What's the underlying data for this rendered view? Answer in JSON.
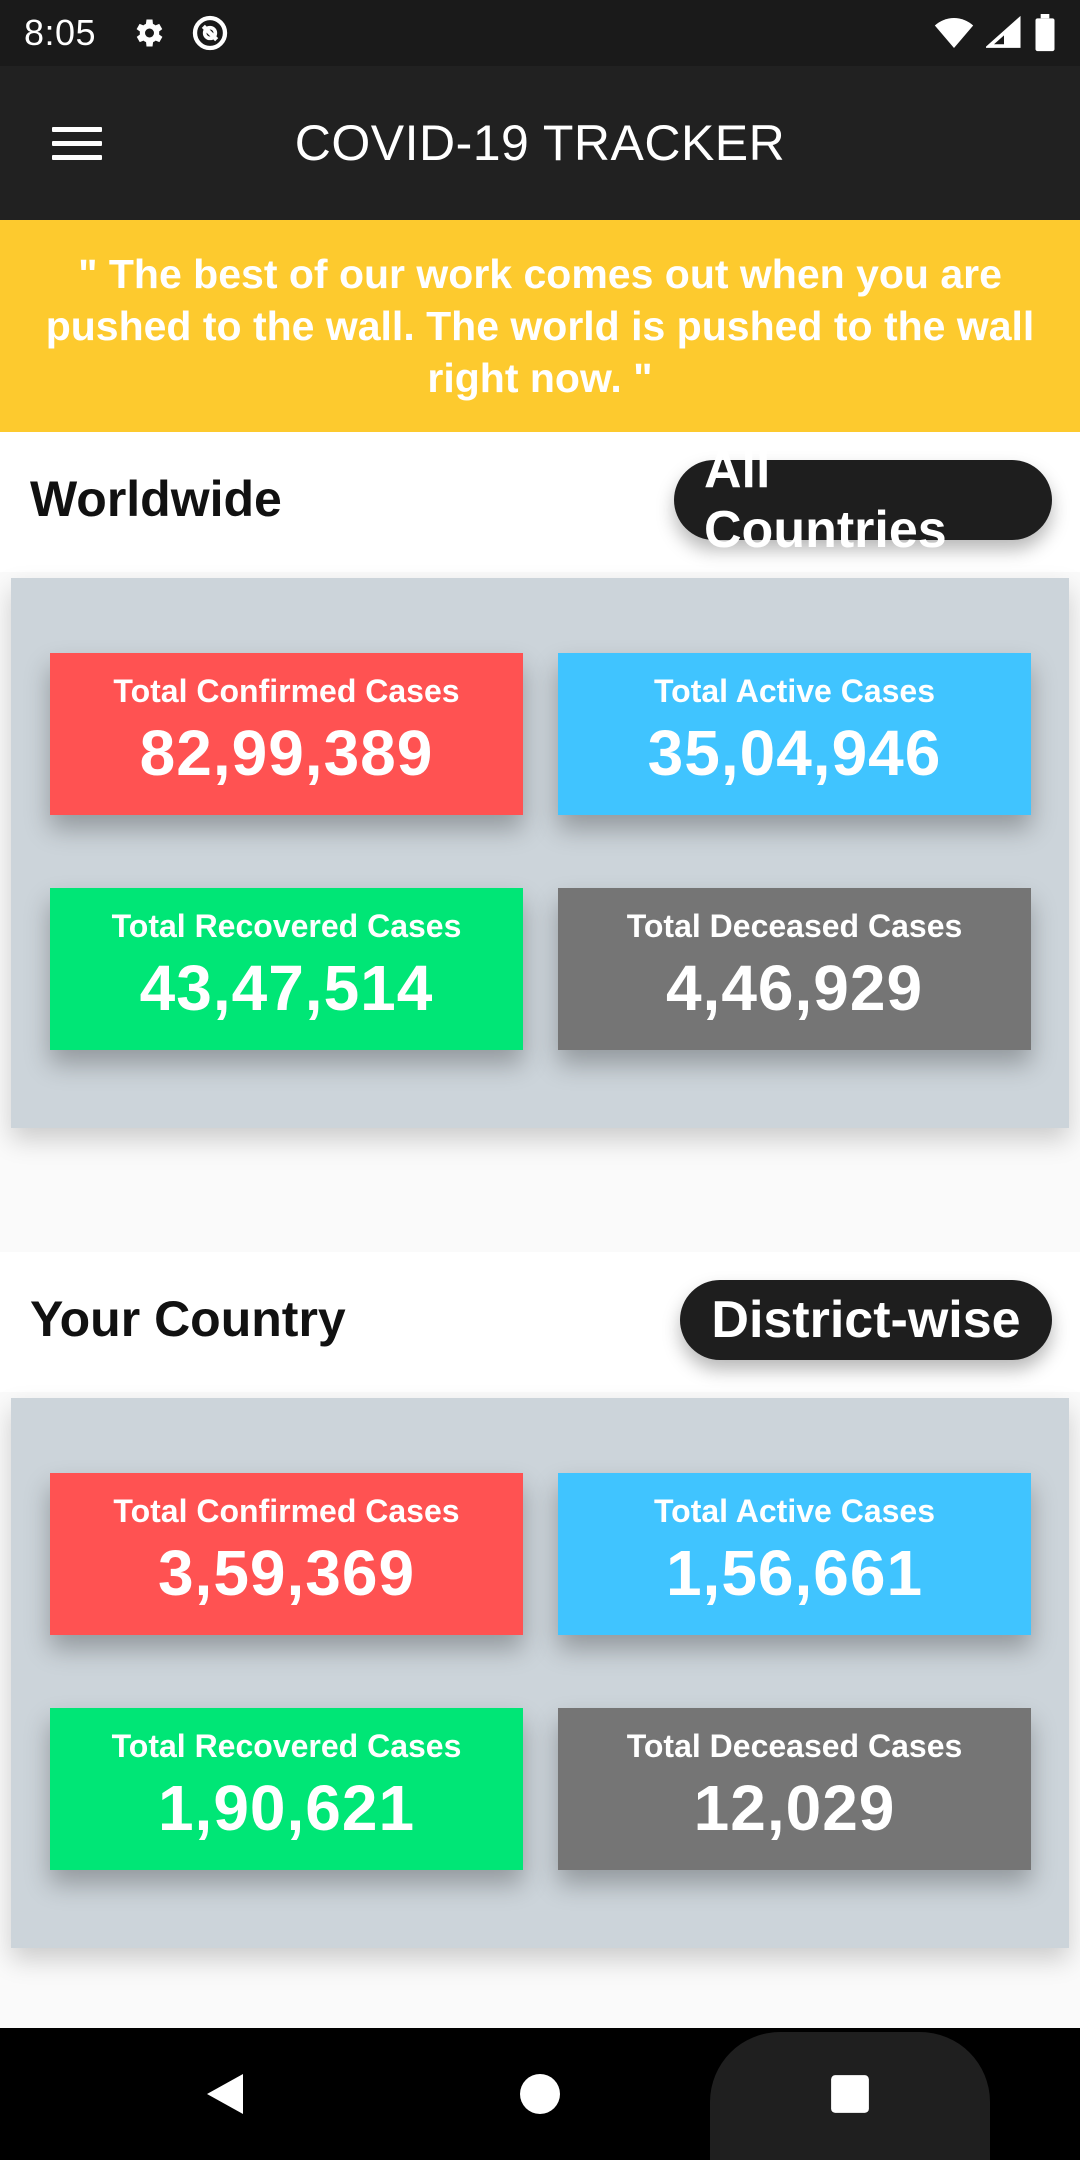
{
  "status_bar": {
    "time": "8:05",
    "left_icons": [
      "gear-icon",
      "data-saver-icon"
    ],
    "right_icons": [
      "wifi-icon",
      "cell-signal-icon",
      "battery-icon"
    ]
  },
  "app_bar": {
    "title": "COVID-19 TRACKER",
    "menu_icon": "hamburger-menu-icon"
  },
  "quote": "\" The best of our work comes out when you are pushed to the wall. The world is pushed to the wall right now. \"",
  "colors": {
    "confirmed": "#ff5252",
    "active": "#40c4ff",
    "recovered": "#00e676",
    "deceased": "#757575",
    "banner": "#fdca2e"
  },
  "worldwide": {
    "title": "Worldwide",
    "button_label": "All Countries",
    "cards": [
      {
        "label": "Total Confirmed Cases",
        "value": "82,99,389"
      },
      {
        "label": "Total Active Cases",
        "value": "35,04,946"
      },
      {
        "label": "Total Recovered Cases",
        "value": "43,47,514"
      },
      {
        "label": "Total Deceased Cases",
        "value": "4,46,929"
      }
    ]
  },
  "country": {
    "title": "Your Country",
    "button_label": "District-wise",
    "cards": [
      {
        "label": "Total Confirmed Cases",
        "value": "3,59,369"
      },
      {
        "label": "Total Active Cases",
        "value": "1,56,661"
      },
      {
        "label": "Total Recovered Cases",
        "value": "1,90,621"
      },
      {
        "label": "Total Deceased Cases",
        "value": "12,029"
      }
    ]
  },
  "nav_bar": {
    "icons": [
      "back-icon",
      "home-icon",
      "recents-icon"
    ]
  }
}
